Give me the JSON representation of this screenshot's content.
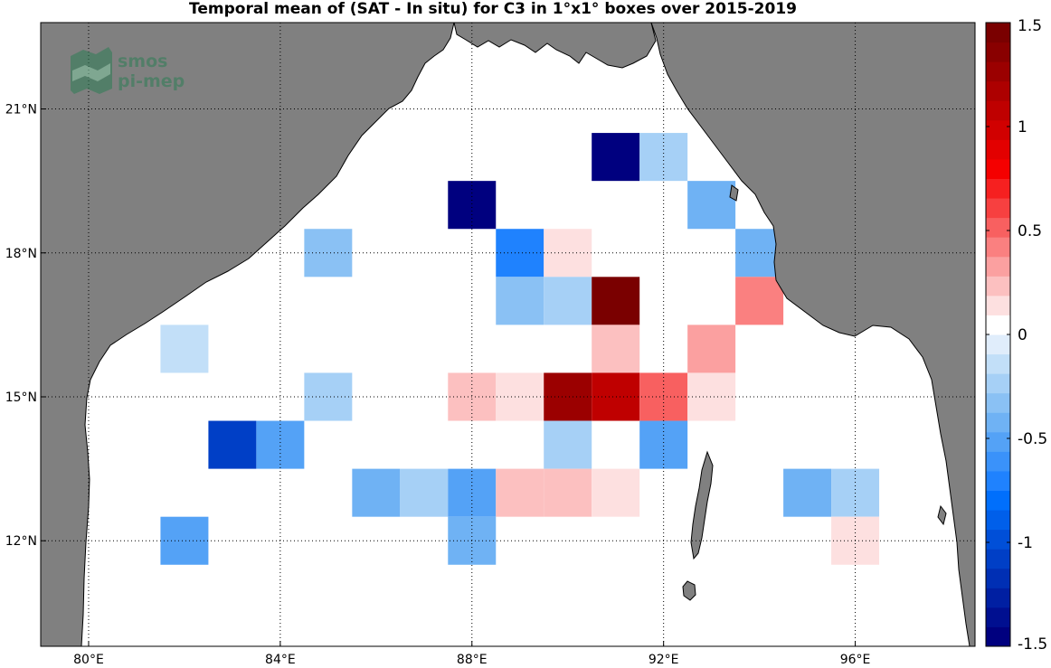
{
  "chart_data": {
    "type": "heatmap",
    "title": "Temporal mean of (SAT - In situ) for C3 in 1°x1° boxes over 2015-2019",
    "watermark": {
      "line1": "smos",
      "line2": "pi-mep"
    },
    "x_range": [
      79.0,
      98.5
    ],
    "y_range": [
      9.8,
      22.8
    ],
    "x_ticks": [
      {
        "value": 80,
        "label": "80°E"
      },
      {
        "value": 84,
        "label": "84°E"
      },
      {
        "value": 88,
        "label": "88°E"
      },
      {
        "value": 92,
        "label": "92°E"
      },
      {
        "value": 96,
        "label": "96°E"
      }
    ],
    "y_ticks": [
      {
        "value": 12,
        "label": "12°N"
      },
      {
        "value": 15,
        "label": "15°N"
      },
      {
        "value": 18,
        "label": "18°N"
      },
      {
        "value": 21,
        "label": "21°N"
      }
    ],
    "grid": true,
    "cells": [
      {
        "lon": 91,
        "lat": 20,
        "value": -1.45
      },
      {
        "lon": 92,
        "lat": 20,
        "value": -0.2
      },
      {
        "lon": 88,
        "lat": 19,
        "value": -1.45
      },
      {
        "lon": 93,
        "lat": 19,
        "value": -0.45
      },
      {
        "lon": 85,
        "lat": 18,
        "value": -0.3
      },
      {
        "lon": 89,
        "lat": 18,
        "value": -0.7
      },
      {
        "lon": 90,
        "lat": 18,
        "value": 0.1
      },
      {
        "lon": 94,
        "lat": 18,
        "value": -0.45
      },
      {
        "lon": 89,
        "lat": 17,
        "value": -0.3
      },
      {
        "lon": 90,
        "lat": 17,
        "value": -0.2
      },
      {
        "lon": 91,
        "lat": 17,
        "value": 1.45
      },
      {
        "lon": 94,
        "lat": 17,
        "value": 0.45
      },
      {
        "lon": 82,
        "lat": 16,
        "value": -0.1
      },
      {
        "lon": 91,
        "lat": 16,
        "value": 0.25
      },
      {
        "lon": 93,
        "lat": 16,
        "value": 0.35
      },
      {
        "lon": 85,
        "lat": 15,
        "value": -0.2
      },
      {
        "lon": 88,
        "lat": 15,
        "value": 0.25
      },
      {
        "lon": 89,
        "lat": 15,
        "value": 0.1
      },
      {
        "lon": 90,
        "lat": 15,
        "value": 1.3
      },
      {
        "lon": 91,
        "lat": 15,
        "value": 1.1
      },
      {
        "lon": 92,
        "lat": 15,
        "value": 0.55
      },
      {
        "lon": 93,
        "lat": 15,
        "value": 0.1
      },
      {
        "lon": 83,
        "lat": 14,
        "value": -1.1
      },
      {
        "lon": 84,
        "lat": 14,
        "value": -0.5
      },
      {
        "lon": 90,
        "lat": 14,
        "value": -0.2
      },
      {
        "lon": 92,
        "lat": 14,
        "value": -0.5
      },
      {
        "lon": 86,
        "lat": 13,
        "value": -0.4
      },
      {
        "lon": 87,
        "lat": 13,
        "value": -0.2
      },
      {
        "lon": 88,
        "lat": 13,
        "value": -0.55
      },
      {
        "lon": 89,
        "lat": 13,
        "value": 0.25
      },
      {
        "lon": 90,
        "lat": 13,
        "value": 0.25
      },
      {
        "lon": 91,
        "lat": 13,
        "value": 0.1
      },
      {
        "lon": 95,
        "lat": 13,
        "value": -0.45
      },
      {
        "lon": 96,
        "lat": 13,
        "value": -0.2
      },
      {
        "lon": 82,
        "lat": 12,
        "value": -0.55
      },
      {
        "lon": 88,
        "lat": 12,
        "value": -0.4
      },
      {
        "lon": 96,
        "lat": 12,
        "value": 0.1
      }
    ],
    "colorbar": {
      "min": -1.5,
      "max": 1.5,
      "ticks": [
        {
          "value": 1.5,
          "label": "1.5"
        },
        {
          "value": 1,
          "label": "1"
        },
        {
          "value": 0.5,
          "label": "0.5"
        },
        {
          "value": 0,
          "label": "0"
        },
        {
          "value": -0.5,
          "label": "-0.5"
        },
        {
          "value": -1,
          "label": "-1"
        },
        {
          "value": -1.5,
          "label": "-1.5"
        }
      ],
      "colors": [
        "#00007f",
        "#000f90",
        "#001fa2",
        "#002fb4",
        "#003fc6",
        "#004fd8",
        "#005fea",
        "#006ffc",
        "#1f82fe",
        "#3a92fa",
        "#54a2f6",
        "#6fb2f4",
        "#8ac1f4",
        "#a6d0f6",
        "#c2dff8",
        "#e0edfb",
        "#ffffff",
        "#fde0e0",
        "#fcc0c0",
        "#fba0a0",
        "#fa8080",
        "#f86060",
        "#f74040",
        "#f62020",
        "#f50000",
        "#e30000",
        "#d10000",
        "#bf0000",
        "#ad0000",
        "#9b0000",
        "#890000",
        "#7a0000"
      ]
    },
    "land_color": "#808080"
  }
}
